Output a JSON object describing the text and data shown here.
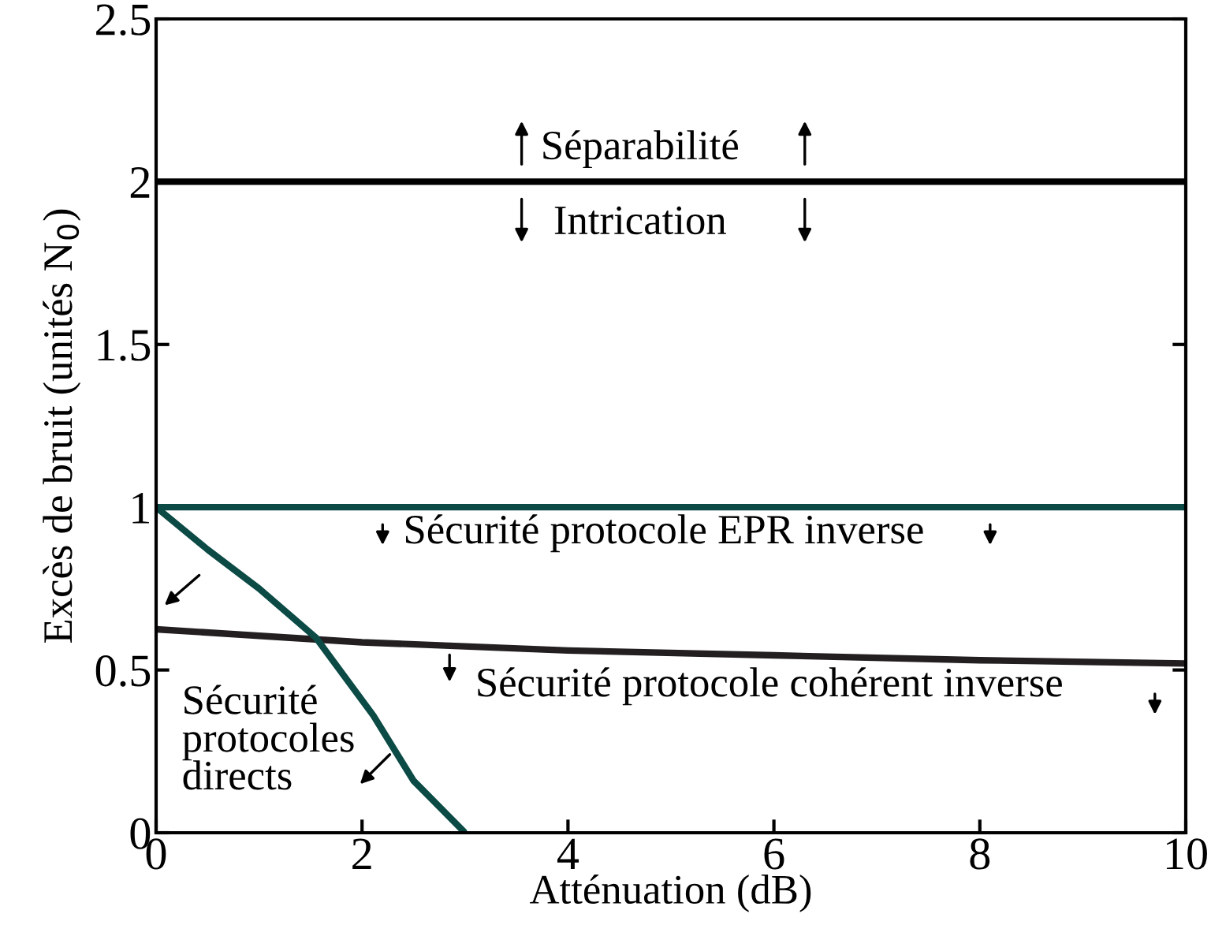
{
  "chart_data": {
    "type": "line",
    "xlabel": "Atténuation (dB)",
    "ylabel": "Excès de bruit (unités N$_{0}$)",
    "series": [
      {
        "color": "#000000",
        "x": [
          0,
          10
        ],
        "values": [
          2,
          2
        ]
      },
      {
        "color": "#0b4a45",
        "x": [
          0,
          10
        ],
        "values": [
          1,
          1
        ]
      },
      {
        "color": "#231f20",
        "x": [
          0,
          1,
          2,
          4,
          6,
          8,
          10
        ],
        "values": [
          0.625,
          0.605,
          0.585,
          0.56,
          0.545,
          0.53,
          0.52
        ]
      },
      {
        "color": "#0b4a45",
        "x": [
          0,
          0.5,
          1,
          1.55,
          2.11,
          2.5,
          3
        ],
        "values": [
          1,
          0.87,
          0.75,
          0.6,
          0.36,
          0.16,
          0
        ]
      }
    ],
    "annotations": [
      "Séparabilité",
      "Intrication",
      "Sécurité protocole EPR inverse",
      "Sécurité protocole cohérent inverse",
      "Sécurité\nprotocoles\ndirects"
    ],
    "xlim": [
      0,
      10
    ],
    "ylim": [
      0,
      2.5
    ],
    "xticks": [
      0,
      2,
      4,
      6,
      8,
      10
    ],
    "yticks": [
      0,
      0.5,
      1,
      1.5,
      2,
      2.5
    ],
    "grid": false,
    "legend": false
  }
}
